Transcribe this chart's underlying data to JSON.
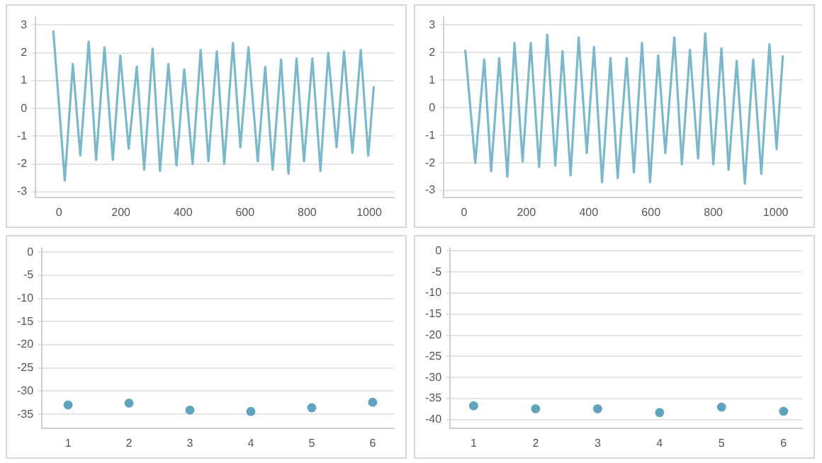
{
  "chart_data": [
    {
      "type": "line",
      "x": [
        -18,
        19,
        45,
        69,
        96,
        120,
        147,
        174,
        198,
        225,
        251,
        275,
        302,
        326,
        353,
        379,
        404,
        431,
        457,
        482,
        509,
        533,
        561,
        585,
        611,
        641,
        665,
        689,
        716,
        740,
        766,
        790,
        817,
        843,
        868,
        895,
        919,
        946,
        973,
        997,
        1015
      ],
      "values": [
        2.8,
        -2.6,
        1.6,
        -1.7,
        2.4,
        -1.85,
        2.2,
        -1.85,
        1.9,
        -1.45,
        1.5,
        -2.2,
        2.15,
        -2.25,
        1.6,
        -2.05,
        1.4,
        -2.0,
        2.1,
        -1.9,
        2.05,
        -2.0,
        2.35,
        -1.4,
        2.2,
        -1.9,
        1.5,
        -2.2,
        1.75,
        -2.35,
        1.8,
        -1.9,
        1.8,
        -2.25,
        2.0,
        -1.4,
        2.05,
        -1.6,
        2.1,
        -1.7,
        0.8
      ],
      "color": "#7ab8cc",
      "marker": "none",
      "xlim": [
        -75,
        1080
      ],
      "ylim": [
        -3.2,
        3.3
      ],
      "xticks": [
        0,
        200,
        400,
        600,
        800,
        1000
      ],
      "yticks": [
        -3,
        -2,
        -1,
        0,
        1,
        2,
        3
      ],
      "grid": "y"
    },
    {
      "type": "line",
      "x": [
        4,
        36,
        65,
        87,
        113,
        139,
        162,
        188,
        214,
        241,
        267,
        293,
        316,
        342,
        368,
        394,
        417,
        443,
        470,
        493,
        522,
        545,
        571,
        597,
        623,
        646,
        675,
        699,
        725,
        751,
        774,
        800,
        826,
        849,
        875,
        901,
        928,
        954,
        980,
        1003,
        1023
      ],
      "values": [
        2.1,
        -2.0,
        1.75,
        -2.3,
        1.8,
        -2.5,
        2.35,
        -1.95,
        2.35,
        -2.15,
        2.65,
        -2.1,
        2.05,
        -2.45,
        2.55,
        -1.65,
        2.2,
        -2.7,
        1.8,
        -2.55,
        1.8,
        -2.35,
        2.35,
        -2.7,
        1.9,
        -1.65,
        2.55,
        -2.05,
        2.1,
        -1.85,
        2.7,
        -2.05,
        2.15,
        -2.25,
        1.7,
        -2.75,
        1.75,
        -2.4,
        2.3,
        -1.5,
        1.9
      ],
      "color": "#7ab8cc",
      "marker": "none",
      "xlim": [
        -65,
        1085
      ],
      "ylim": [
        -3.25,
        3.3
      ],
      "xticks": [
        0,
        200,
        400,
        600,
        800,
        1000
      ],
      "yticks": [
        -3,
        -2,
        -1,
        0,
        1,
        2,
        3
      ],
      "grid": "y"
    },
    {
      "type": "scatter",
      "x": [
        1,
        2,
        3,
        4,
        5,
        6
      ],
      "values": [
        -33.0,
        -32.6,
        -34.1,
        -34.4,
        -33.6,
        -32.4
      ],
      "color": "#5fa3bd",
      "marker": "circle",
      "xlim": [
        0.57,
        6.35
      ],
      "ylim": [
        -38,
        1
      ],
      "xticks": [
        1,
        2,
        3,
        4,
        5,
        6
      ],
      "yticks": [
        -35,
        -30,
        -25,
        -20,
        -15,
        -10,
        -5,
        0
      ],
      "grid": "y"
    },
    {
      "type": "scatter",
      "x": [
        1,
        2,
        3,
        4,
        5,
        6
      ],
      "values": [
        -36.7,
        -37.4,
        -37.4,
        -38.3,
        -37.0,
        -38.0
      ],
      "color": "#5fa3bd",
      "marker": "circle",
      "xlim": [
        0.62,
        6.3
      ],
      "ylim": [
        -42,
        0.8
      ],
      "xticks": [
        1,
        2,
        3,
        4,
        5,
        6
      ],
      "yticks": [
        -40,
        -35,
        -30,
        -25,
        -20,
        -15,
        -10,
        -5,
        0
      ],
      "grid": "y"
    }
  ]
}
